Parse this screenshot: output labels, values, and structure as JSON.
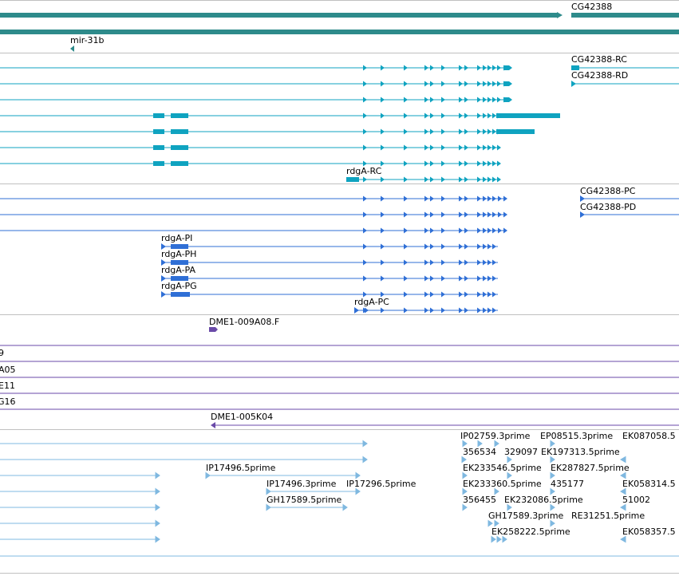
{
  "colors": {
    "gene": "#2e8b8b",
    "mrna": "#0fa3c0",
    "protein": "#2f6fd6",
    "clone": "#6a4aa8",
    "est": "#7fb8e0",
    "separator": "#c0c0c0"
  },
  "gene_track": {
    "genes": [
      "CG42388"
    ],
    "mirnas": [
      "mir-31b"
    ]
  },
  "transcript_track": {
    "labels": [
      "CG42388-RC",
      "CG42388-RD",
      "rdgA-RC"
    ]
  },
  "protein_track": {
    "labels": [
      "CG42388-PC",
      "CG42388-PD",
      "rdgA-PI",
      "rdgA-PH",
      "rdgA-PA",
      "rdgA-PG",
      "rdgA-PC"
    ]
  },
  "clone_track": {
    "labels": [
      "DME1-009A08.F",
      "9",
      "A05",
      "E11",
      "G16",
      "DME1-005K04"
    ]
  },
  "est_track": {
    "labels": [
      "IP17496.5prime",
      "IP17496.3prime",
      "IP17296.5prime",
      "GH17589.5prime",
      "IP02759.3prime",
      "EP08515.3prime",
      "EK087058.5",
      "356534",
      "329097",
      "EK197313.5prime",
      "EK233546.5prime",
      "EK287827.5prime",
      "EK233360.5prime",
      "435177",
      "EK058314.5",
      "356455",
      "EK232086.5prime",
      "51002",
      "GH17589.3prime",
      "RE31251.5prime",
      "EK258222.5prime",
      "EK058357.5"
    ]
  }
}
